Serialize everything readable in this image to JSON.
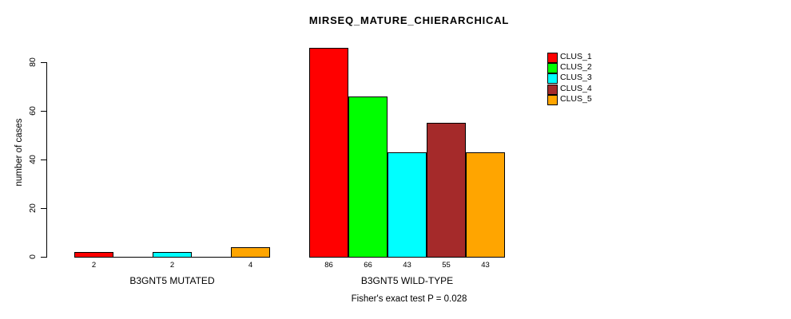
{
  "chart_data": {
    "type": "bar",
    "title": "MIRSEQ_MATURE_CHIERARCHICAL",
    "ylabel": "number of cases",
    "ylim": [
      0,
      80
    ],
    "yticks": [
      0,
      20,
      40,
      60,
      80
    ],
    "grid": false,
    "legend_position": "top-right",
    "axis_color": "#000000",
    "text_color": "#000000",
    "background_color": "#FFFFFF",
    "legend": [
      {
        "label": "CLUS_1",
        "color": "#FF0000"
      },
      {
        "label": "CLUS_2",
        "color": "#00FF00"
      },
      {
        "label": "CLUS_3",
        "color": "#00FFFF"
      },
      {
        "label": "CLUS_4",
        "color": "#A52A2A"
      },
      {
        "label": "CLUS_5",
        "color": "#FFA500"
      }
    ],
    "groups": [
      {
        "label": "B3GNT5 MUTATED",
        "bars": [
          {
            "cluster": "CLUS_1",
            "value": 2,
            "value_label": "2"
          },
          {
            "cluster": "CLUS_3",
            "value": 2,
            "value_label": "2"
          },
          {
            "cluster": "CLUS_5",
            "value": 4,
            "value_label": "4"
          }
        ]
      },
      {
        "label": "B3GNT5 WILD-TYPE",
        "bars": [
          {
            "cluster": "CLUS_1",
            "value": 86,
            "value_label": "86"
          },
          {
            "cluster": "CLUS_2",
            "value": 66,
            "value_label": "66"
          },
          {
            "cluster": "CLUS_3",
            "value": 43,
            "value_label": "43"
          },
          {
            "cluster": "CLUS_4",
            "value": 55,
            "value_label": "55"
          },
          {
            "cluster": "CLUS_5",
            "value": 43,
            "value_label": "43"
          }
        ]
      }
    ],
    "footnote": "Fisher's exact test P = 0.028"
  }
}
